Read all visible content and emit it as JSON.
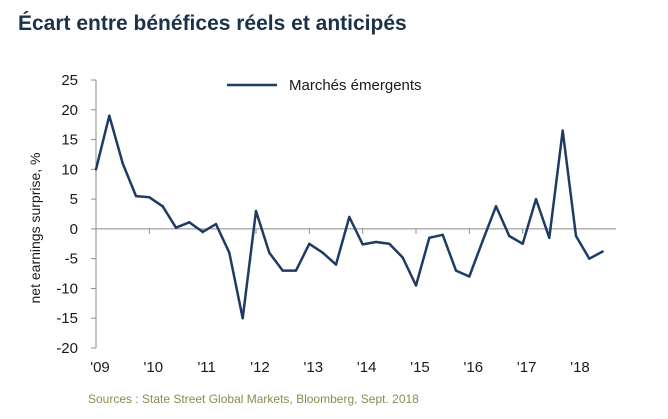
{
  "title": "Écart entre bénéfices réels et anticipés",
  "source": "Sources : State Street Global Markets, Bloomberg, Sept. 2018",
  "colors": {
    "title": "#1c3249",
    "line": "#1f3b63",
    "source": "#8f8a52"
  },
  "chart_data": {
    "type": "line",
    "title": "",
    "xlabel": "",
    "ylabel": "net earnings surprise, %",
    "ylim": [
      -20,
      25
    ],
    "yticks": [
      25,
      20,
      15,
      10,
      5,
      0,
      -5,
      -10,
      -15,
      -20
    ],
    "xlim": [
      2009.0,
      2018.75
    ],
    "xticks": [
      {
        "x": 2009,
        "label": "'09"
      },
      {
        "x": 2010,
        "label": "'10"
      },
      {
        "x": 2011,
        "label": "'11"
      },
      {
        "x": 2012,
        "label": "'12"
      },
      {
        "x": 2013,
        "label": "'13"
      },
      {
        "x": 2014,
        "label": "'14"
      },
      {
        "x": 2015,
        "label": "'15"
      },
      {
        "x": 2016,
        "label": "'16"
      },
      {
        "x": 2017,
        "label": "'17"
      },
      {
        "x": 2018,
        "label": "'18"
      }
    ],
    "zero_line": true,
    "grid": false,
    "legend_position": "top-center",
    "series": [
      {
        "name": "Marchés émergents",
        "color": "#1f3b63",
        "x": [
          2009.0,
          2009.25,
          2009.5,
          2009.75,
          2010.0,
          2010.25,
          2010.5,
          2010.75,
          2011.0,
          2011.25,
          2011.5,
          2011.75,
          2012.0,
          2012.25,
          2012.5,
          2012.75,
          2013.0,
          2013.25,
          2013.5,
          2013.75,
          2014.0,
          2014.25,
          2014.5,
          2014.75,
          2015.0,
          2015.25,
          2015.5,
          2015.75,
          2016.0,
          2016.25,
          2016.5,
          2016.75,
          2017.0,
          2017.25,
          2017.5,
          2017.75,
          2018.0,
          2018.25,
          2018.5
        ],
        "y": [
          10,
          19,
          11,
          5.5,
          5.3,
          3.8,
          0.2,
          1.1,
          -0.5,
          0.8,
          -4,
          -15,
          3,
          -4,
          -7,
          -7,
          -2.5,
          -4,
          -6,
          2,
          -2.6,
          -2.2,
          -2.5,
          -4.8,
          -9.5,
          -1.5,
          -1,
          -7,
          -8,
          -2,
          3.8,
          -1.2,
          -2.5,
          5,
          -1.5,
          16.5,
          -1.2,
          -5,
          -3.8
        ]
      }
    ]
  }
}
